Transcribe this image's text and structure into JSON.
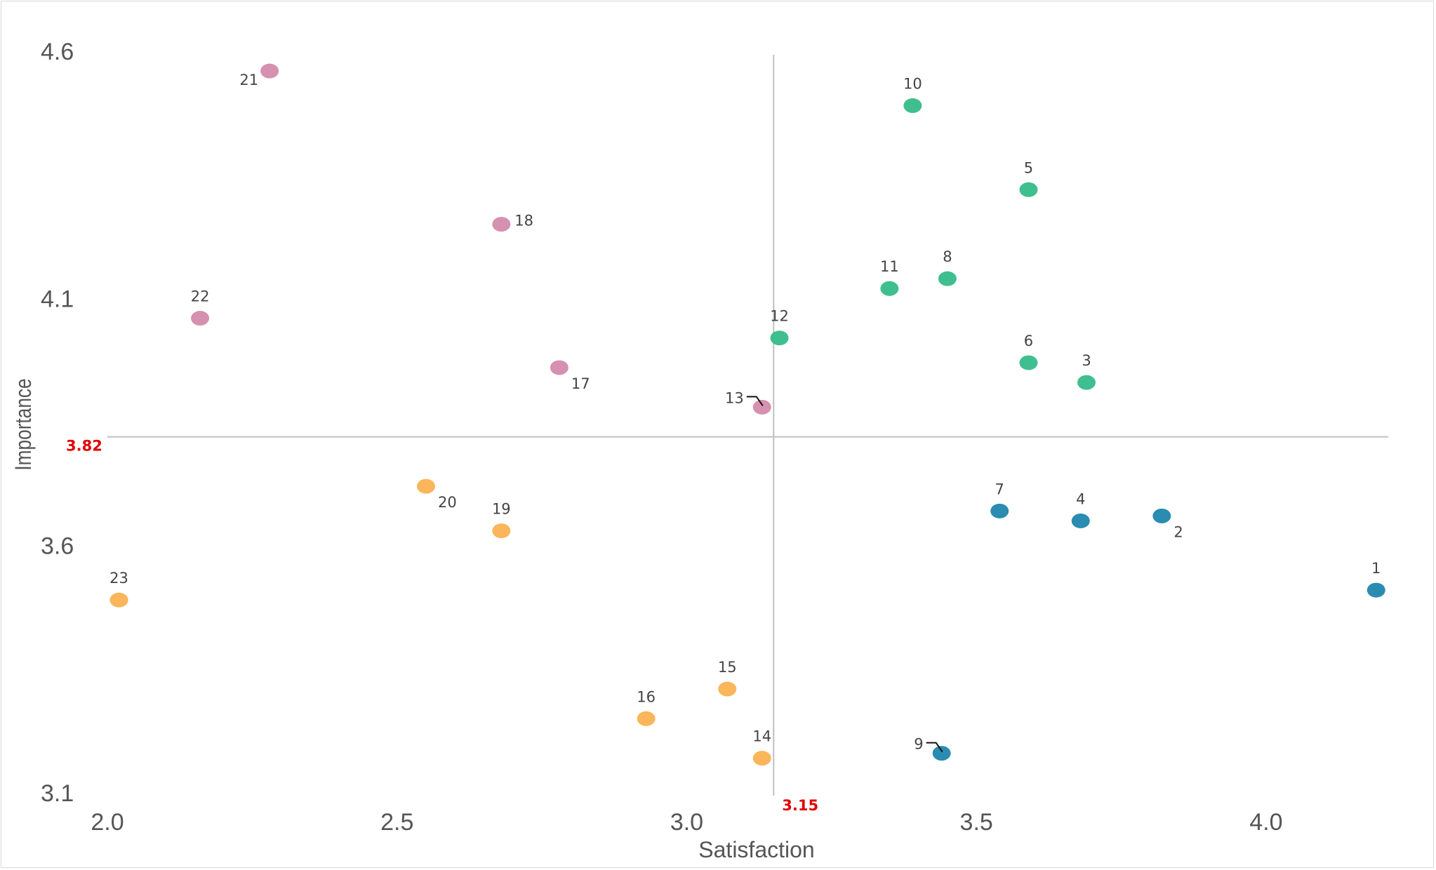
{
  "chart_data": {
    "type": "scatter",
    "title": "",
    "xlabel": "Satisfaction",
    "ylabel": "Importance",
    "xlim": [
      2.0,
      4.2
    ],
    "ylim": [
      3.1,
      4.6
    ],
    "xticks": [
      "2.0",
      "2.5",
      "3.0",
      "3.5",
      "4.0"
    ],
    "yticks": [
      "3.1",
      "3.6",
      "4.1",
      "4.6"
    ],
    "grid": false,
    "reference_lines": {
      "x": {
        "value": 3.15,
        "label": "3.15"
      },
      "y": {
        "value": 3.82,
        "label": "3.82"
      },
      "line_color": "#bfbfbf",
      "label_color": "#e00000"
    },
    "colors": {
      "green": "#3fbf8f",
      "blue": "#2a8cb0",
      "pink": "#d690b0",
      "orange": "#fbb55a"
    },
    "points": [
      {
        "label": "1",
        "x": 4.19,
        "y": 3.51,
        "color": "blue",
        "label_pos": "top"
      },
      {
        "label": "2",
        "x": 3.82,
        "y": 3.66,
        "color": "blue",
        "label_pos": "bottom-right"
      },
      {
        "label": "3",
        "x": 3.69,
        "y": 3.93,
        "color": "green",
        "label_pos": "top"
      },
      {
        "label": "4",
        "x": 3.68,
        "y": 3.65,
        "color": "blue",
        "label_pos": "top"
      },
      {
        "label": "5",
        "x": 3.59,
        "y": 4.32,
        "color": "green",
        "label_pos": "top"
      },
      {
        "label": "6",
        "x": 3.59,
        "y": 3.97,
        "color": "green",
        "label_pos": "top"
      },
      {
        "label": "7",
        "x": 3.54,
        "y": 3.67,
        "color": "blue",
        "label_pos": "top"
      },
      {
        "label": "8",
        "x": 3.45,
        "y": 4.14,
        "color": "green",
        "label_pos": "top"
      },
      {
        "label": "9",
        "x": 3.44,
        "y": 3.18,
        "color": "blue",
        "label_pos": "leader-left"
      },
      {
        "label": "10",
        "x": 3.39,
        "y": 4.49,
        "color": "green",
        "label_pos": "top"
      },
      {
        "label": "11",
        "x": 3.35,
        "y": 4.12,
        "color": "green",
        "label_pos": "top"
      },
      {
        "label": "12",
        "x": 3.16,
        "y": 4.02,
        "color": "green",
        "label_pos": "top"
      },
      {
        "label": "13",
        "x": 3.13,
        "y": 3.88,
        "color": "pink",
        "label_pos": "leader-left"
      },
      {
        "label": "14",
        "x": 3.13,
        "y": 3.17,
        "color": "orange",
        "label_pos": "top"
      },
      {
        "label": "15",
        "x": 3.07,
        "y": 3.31,
        "color": "orange",
        "label_pos": "top"
      },
      {
        "label": "16",
        "x": 2.93,
        "y": 3.25,
        "color": "orange",
        "label_pos": "top"
      },
      {
        "label": "17",
        "x": 2.78,
        "y": 3.96,
        "color": "pink",
        "label_pos": "bottom-right"
      },
      {
        "label": "18",
        "x": 2.68,
        "y": 4.25,
        "color": "pink",
        "label_pos": "right"
      },
      {
        "label": "19",
        "x": 2.68,
        "y": 3.63,
        "color": "orange",
        "label_pos": "top"
      },
      {
        "label": "20",
        "x": 2.55,
        "y": 3.72,
        "color": "orange",
        "label_pos": "bottom-right"
      },
      {
        "label": "21",
        "x": 2.28,
        "y": 4.56,
        "color": "pink",
        "label_pos": "bottom-left"
      },
      {
        "label": "22",
        "x": 2.16,
        "y": 4.06,
        "color": "pink",
        "label_pos": "top"
      },
      {
        "label": "23",
        "x": 2.02,
        "y": 3.49,
        "color": "orange",
        "label_pos": "top"
      }
    ]
  }
}
